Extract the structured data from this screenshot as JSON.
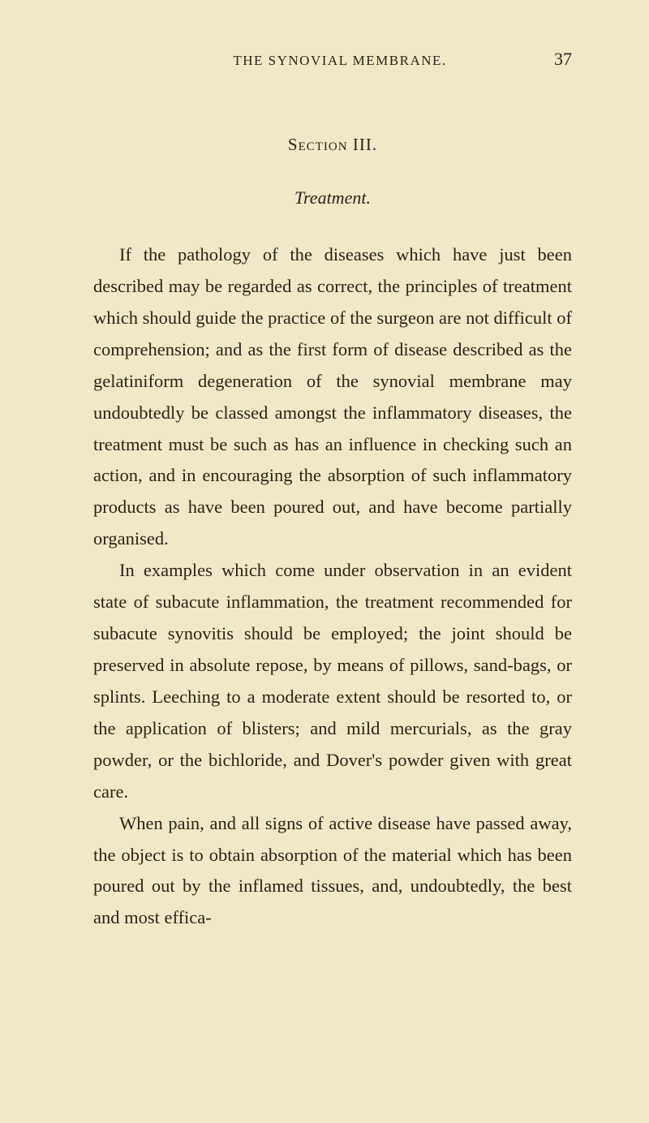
{
  "page": {
    "running_head": "THE SYNOVIAL MEMBRANE.",
    "page_number": "37",
    "section_title": "Section III.",
    "subsection_title": "Treatment.",
    "paragraphs": [
      "If the pathology of the diseases which have just been described may be regarded as correct, the principles of treatment which should guide the practice of the surgeon are not difficult of comprehension; and as the first form of disease described as the gelatiniform degeneration of the synovial membrane may undoubtedly be classed amongst the inflammatory diseases, the treatment must be such as has an influence in checking such an action, and in encouraging the absorption of such inflammatory products as have been poured out, and have become partially organised.",
      "In examples which come under observation in an evident state of subacute inflammation, the treatment recommended for subacute synovitis should be employed; the joint should be preserved in absolute repose, by means of pillows, sand-bags, or splints. Leeching to a moderate extent should be resorted to, or the application of blisters; and mild mercurials, as the gray powder, or the bichloride, and Dover's powder given with great care.",
      "When pain, and all signs of active disease have passed away, the object is to obtain absorption of the material which has been poured out by the inflamed tissues, and, undoubtedly, the best and most effica-"
    ]
  },
  "colors": {
    "background": "#f0e8c8",
    "text": "#2a2418"
  },
  "typography": {
    "body_fontsize": 22.5,
    "body_lineheight": 1.73,
    "header_fontsize": 17,
    "pagenum_fontsize": 22,
    "section_fontsize": 21,
    "subsection_fontsize": 22
  }
}
